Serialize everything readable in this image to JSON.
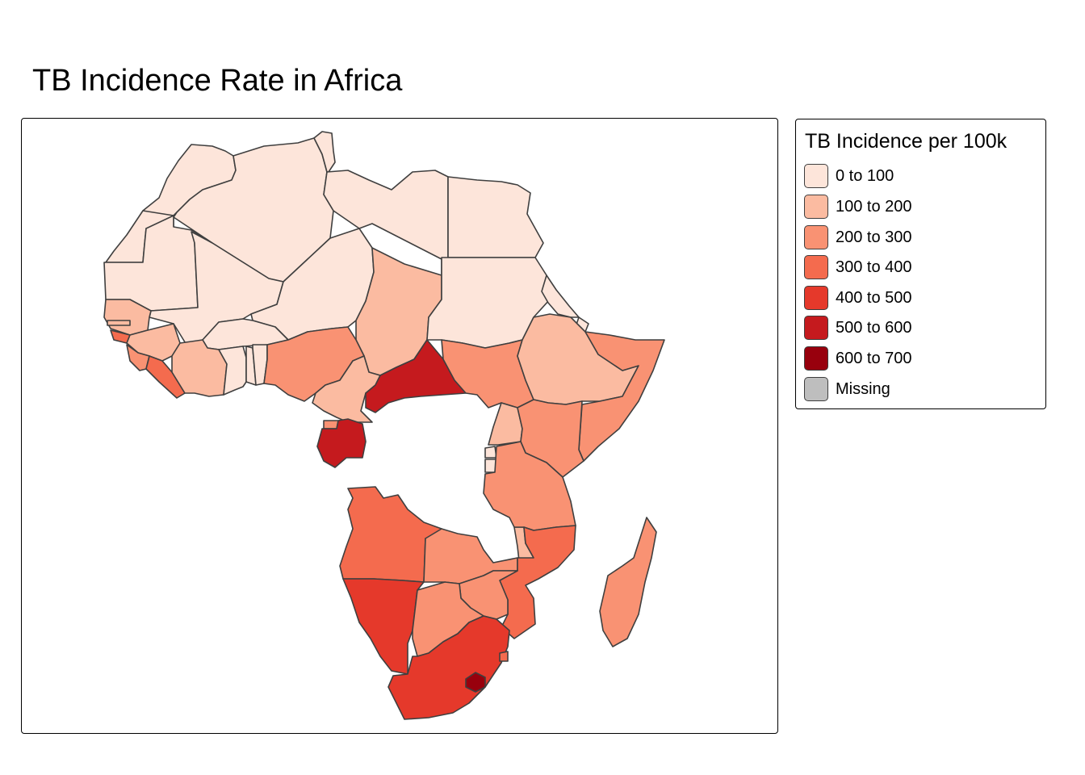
{
  "title": "TB Incidence Rate in Africa",
  "legend": {
    "title": "TB Incidence per 100k",
    "items": [
      {
        "label": "0 to 100",
        "color": "#fde5da"
      },
      {
        "label": "100 to 200",
        "color": "#fbbba1"
      },
      {
        "label": "200 to 300",
        "color": "#f99273"
      },
      {
        "label": "300 to 400",
        "color": "#f46b4e"
      },
      {
        "label": "400 to 500",
        "color": "#e5392b"
      },
      {
        "label": "500 to 600",
        "color": "#c51a1e"
      },
      {
        "label": "600 to 700",
        "color": "#98000d"
      },
      {
        "label": "Missing",
        "color": "#bebebe"
      }
    ]
  },
  "regions": [
    {
      "name": "Morocco",
      "class": 0
    },
    {
      "name": "Western Sahara",
      "class": 0
    },
    {
      "name": "Algeria",
      "class": 0
    },
    {
      "name": "Tunisia",
      "class": 0
    },
    {
      "name": "Libya",
      "class": 0
    },
    {
      "name": "Egypt",
      "class": 0
    },
    {
      "name": "Mauritania",
      "class": 0
    },
    {
      "name": "Mali",
      "class": 0
    },
    {
      "name": "Niger",
      "class": 0
    },
    {
      "name": "Chad",
      "class": 1
    },
    {
      "name": "Sudan",
      "class": 0
    },
    {
      "name": "Eritrea",
      "class": 0
    },
    {
      "name": "Djibouti",
      "class": 0
    },
    {
      "name": "Senegal",
      "class": 1
    },
    {
      "name": "Gambia",
      "class": 1
    },
    {
      "name": "Guinea-Bissau",
      "class": 3
    },
    {
      "name": "Guinea",
      "class": 1
    },
    {
      "name": "Sierra Leone",
      "class": 2
    },
    {
      "name": "Liberia",
      "class": 3
    },
    {
      "name": "Burkina Faso",
      "class": 0
    },
    {
      "name": "Cote d'Ivoire",
      "class": 1
    },
    {
      "name": "Ghana",
      "class": 0
    },
    {
      "name": "Togo",
      "class": 0
    },
    {
      "name": "Benin",
      "class": 0
    },
    {
      "name": "Nigeria",
      "class": 2
    },
    {
      "name": "Cameroon",
      "class": 1
    },
    {
      "name": "Central African Republic",
      "class": 5
    },
    {
      "name": "South Sudan",
      "class": 2
    },
    {
      "name": "Ethiopia",
      "class": 1
    },
    {
      "name": "Somalia",
      "class": 2
    },
    {
      "name": "Equatorial Guinea",
      "class": 2
    },
    {
      "name": "Gabon",
      "class": 5
    },
    {
      "name": "Uganda",
      "class": 1
    },
    {
      "name": "Kenya",
      "class": 2
    },
    {
      "name": "Rwanda",
      "class": 0
    },
    {
      "name": "Burundi",
      "class": 0
    },
    {
      "name": "Angola",
      "class": 3
    },
    {
      "name": "Zambia",
      "class": 2
    },
    {
      "name": "Malawi",
      "class": 1
    },
    {
      "name": "Tanzania",
      "class": 2
    },
    {
      "name": "Mozambique",
      "class": 3
    },
    {
      "name": "Zimbabwe",
      "class": 2
    },
    {
      "name": "Namibia",
      "class": 4
    },
    {
      "name": "Botswana",
      "class": 2
    },
    {
      "name": "South Africa",
      "class": 4
    },
    {
      "name": "Lesotho",
      "class": 6
    },
    {
      "name": "Eswatini",
      "class": 3
    },
    {
      "name": "Madagascar",
      "class": 2
    }
  ]
}
